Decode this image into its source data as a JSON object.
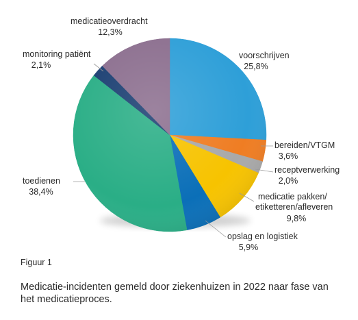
{
  "chart_data": {
    "type": "pie",
    "start_angle_deg": 0,
    "direction": "clockwise",
    "slices": [
      {
        "name": "voorschrijven",
        "value": 25.8,
        "value_label": "25,8%",
        "color": "#2e9fd8"
      },
      {
        "name": "bereiden/VTGM",
        "value": 3.6,
        "value_label": "3,6%",
        "color": "#ef7d23"
      },
      {
        "name": "receptverwerking",
        "value": 2.0,
        "value_label": "2,0%",
        "color": "#a9a9a9"
      },
      {
        "name": "medicatie pakken/ etiketteren/afleveren",
        "name_lines": [
          "medicatie pakken/",
          "etiketteren/afleveren"
        ],
        "value": 9.8,
        "value_label": "9,8%",
        "color": "#f7c300"
      },
      {
        "name": "opslag en logistiek",
        "value": 5.9,
        "value_label": "5,9%",
        "color": "#0b6fb8"
      },
      {
        "name": "toedienen",
        "value": 38.4,
        "value_label": "38,4%",
        "color": "#2aae86"
      },
      {
        "name": "monitoring patiënt",
        "value": 2.1,
        "value_label": "2,1%",
        "color": "#1b3f72"
      },
      {
        "name": "medicatieoverdracht",
        "value": 12.3,
        "value_label": "12,3%",
        "color": "#8c6f8f"
      }
    ]
  },
  "figure": {
    "number": "Figuur 1",
    "caption": "Medicatie-incidenten gemeld door ziekenhuizen in 2022 naar fase van het medicatieproces."
  }
}
